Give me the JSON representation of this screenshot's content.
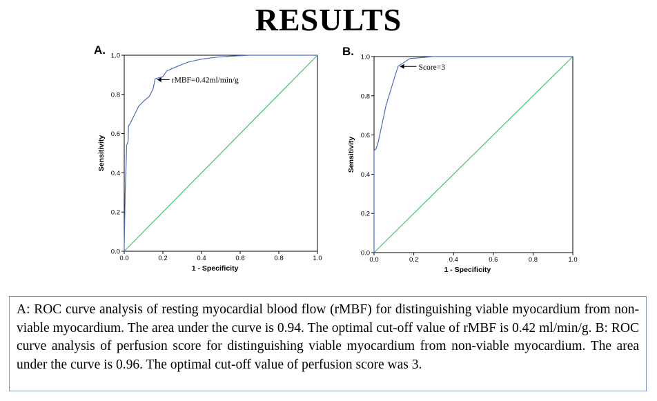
{
  "title": "RESULTS",
  "chart_data": [
    {
      "type": "line",
      "panel_label": "A.",
      "xlabel": "1 - Specificity",
      "ylabel": "Sensitivity",
      "xlim": [
        0,
        1
      ],
      "ylim": [
        0,
        1
      ],
      "x_ticks": [
        "0.0",
        "0.2",
        "0.4",
        "0.6",
        "0.8",
        "1.0"
      ],
      "y_ticks": [
        "0.0",
        "0.2",
        "0.4",
        "0.6",
        "0.8",
        "1.0"
      ],
      "series": [
        {
          "color": "#4a6cc0",
          "points": [
            [
              0,
              0
            ],
            [
              0,
              0.02
            ],
            [
              0.005,
              0.3
            ],
            [
              0.01,
              0.45
            ],
            [
              0.012,
              0.54
            ],
            [
              0.02,
              0.56
            ],
            [
              0.022,
              0.64
            ],
            [
              0.03,
              0.65
            ],
            [
              0.04,
              0.67
            ],
            [
              0.05,
              0.69
            ],
            [
              0.06,
              0.71
            ],
            [
              0.075,
              0.74
            ],
            [
              0.1,
              0.765
            ],
            [
              0.13,
              0.79
            ],
            [
              0.15,
              0.83
            ],
            [
              0.16,
              0.88
            ],
            [
              0.2,
              0.89
            ],
            [
              0.22,
              0.92
            ],
            [
              0.28,
              0.945
            ],
            [
              0.33,
              0.965
            ],
            [
              0.4,
              0.98
            ],
            [
              0.48,
              0.99
            ],
            [
              0.55,
              0.995
            ],
            [
              0.65,
              1.0
            ],
            [
              0.8,
              1.0
            ],
            [
              1.0,
              1.0
            ]
          ]
        },
        {
          "color": "#3cc46a",
          "points": [
            [
              0,
              0
            ],
            [
              1,
              1
            ]
          ]
        }
      ],
      "annotation": {
        "text": "rMBF=0.42ml/min/g",
        "x": 0.16,
        "y": 0.875
      }
    },
    {
      "type": "line",
      "panel_label": "B.",
      "xlabel": "1 - Specificity",
      "ylabel": "Sensitivity",
      "xlim": [
        0,
        1
      ],
      "ylim": [
        0,
        1
      ],
      "x_ticks": [
        "0.0",
        "0.2",
        "0.4",
        "0.6",
        "0.8",
        "1.0"
      ],
      "y_ticks": [
        "0.0",
        "0.2",
        "0.4",
        "0.6",
        "0.8",
        "1.0"
      ],
      "series": [
        {
          "color": "#4a6cc0",
          "points": [
            [
              0,
              0
            ],
            [
              0,
              0.52
            ],
            [
              0.01,
              0.53
            ],
            [
              0.02,
              0.56
            ],
            [
              0.06,
              0.75
            ],
            [
              0.12,
              0.95
            ],
            [
              0.18,
              0.99
            ],
            [
              0.3,
              1.0
            ],
            [
              1.0,
              1.0
            ]
          ]
        },
        {
          "color": "#3cc46a",
          "points": [
            [
              0,
              0
            ],
            [
              1,
              1
            ]
          ]
        }
      ],
      "annotation": {
        "text": "Score=3",
        "x": 0.12,
        "y": 0.95
      }
    }
  ],
  "caption": "A: ROC curve analysis of resting myocardial blood flow (rMBF) for distinguishing viable myocardium from non-viable myocardium. The area under the curve is 0.94. The optimal cut-off value of rMBF is 0.42 ml/min/g. B: ROC curve analysis of perfusion score for distinguishing viable myocardium from non-viable myocardium. The area under the curve is 0.96. The optimal cut-off value of perfusion score was 3."
}
